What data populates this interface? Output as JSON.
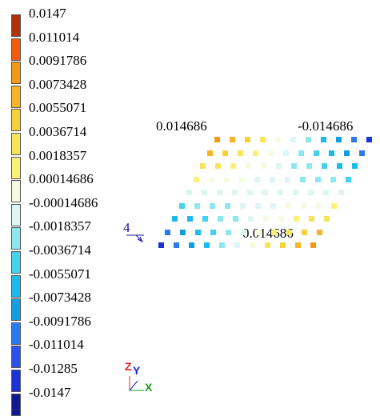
{
  "legend": {
    "labels": [
      "0.0147",
      "0.011014",
      "0.0091786",
      "0.0073428",
      "0.0055071",
      "0.0036714",
      "0.0018357",
      "0.00014686",
      "-0.00014686",
      "-0.0018357",
      "-0.0036714",
      "-0.0055071",
      "-0.0073428",
      "-0.0091786",
      "-0.011014",
      "-0.01285",
      "-0.0147"
    ],
    "colors": [
      "#b0320a",
      "#f25a0c",
      "#f29a18",
      "#f4b52a",
      "#f6d23a",
      "#f8e45a",
      "#fbf178",
      "#f4fbe2",
      "#ddf6f4",
      "#8ee6ee",
      "#44d2ee",
      "#1cbbec",
      "#129de0",
      "#2a7af0",
      "#2a52ea",
      "#1c32d6",
      "#101a8e"
    ]
  },
  "annotations": {
    "top_left_value": "0.014686",
    "top_right_value": "-0.014686",
    "bottom_value": "0.014686",
    "load_label": "4"
  },
  "axes": {
    "z": "Z",
    "y": "Y",
    "x": "X"
  }
}
